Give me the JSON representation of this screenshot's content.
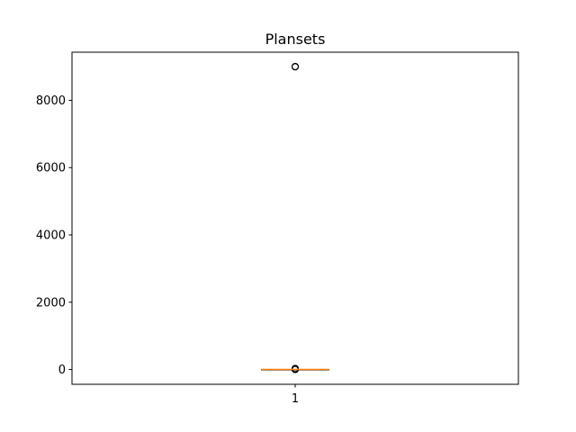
{
  "chart_data": {
    "type": "box",
    "title": "Plansets",
    "xlabel": "",
    "ylabel": "",
    "categories": [
      "1"
    ],
    "ylim": [
      -440,
      9430
    ],
    "yticks": [
      0,
      2000,
      4000,
      6000,
      8000
    ],
    "ytick_labels": [
      "0",
      "2000",
      "4000",
      "6000",
      "8000"
    ],
    "boxes": [
      {
        "category": "1",
        "min": 0,
        "q1": 0,
        "median": 0,
        "q3": 0,
        "max": 0,
        "outliers": [
          9000,
          9005,
          8995,
          1,
          2,
          3,
          5,
          8,
          10,
          12,
          15,
          20,
          25,
          30
        ]
      }
    ],
    "grid": false,
    "legend": "none",
    "colors": {
      "box": "#000000",
      "median": "#ff7f0e",
      "outlier_edge": "#000000"
    }
  }
}
